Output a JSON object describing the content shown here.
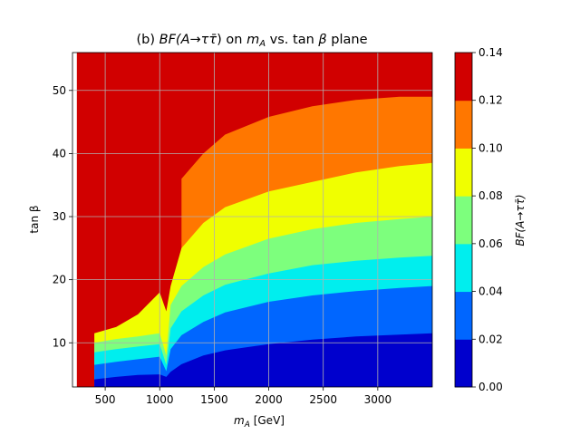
{
  "chart_data": {
    "type": "contourf",
    "title": "(b) BF(A→ττ̄) on m_A vs. tanβ plane",
    "title_parts": {
      "prefix": "(b) ",
      "bf": "BF",
      "paren_open": "(A",
      "arrow": "→",
      "tau": "τ",
      "taubar": "τ̄",
      "paren_close": ")",
      "on": " on ",
      "m": "m",
      "sub_A": "A",
      "vs": " vs. tan ",
      "beta": "β",
      "plane": " plane"
    },
    "xlabel": "m_A [GeV]",
    "xlabel_parts": {
      "m": "m",
      "sub_A": "A",
      "unit": " [GeV]"
    },
    "ylabel": "tan β",
    "xlim": [
      200,
      3500
    ],
    "ylim": [
      3,
      56
    ],
    "xticks": [
      500,
      1000,
      1500,
      2000,
      2500,
      3000
    ],
    "yticks": [
      10,
      20,
      30,
      40,
      50
    ],
    "grid": true,
    "levels": [
      0.0,
      0.02,
      0.04,
      0.06,
      0.08,
      0.1,
      0.12,
      0.14
    ],
    "level_colors": [
      "#0000cd",
      "#0066ff",
      "#00eeee",
      "#7dff7d",
      "#f0ff00",
      "#ff7700",
      "#d10000"
    ],
    "boundaries": {
      "x": [
        240,
        400,
        600,
        800,
        1000,
        1060,
        1100,
        1200,
        1400,
        1600,
        2000,
        2400,
        2800,
        3200,
        3500
      ],
      "bf_0_02": [
        null,
        4.2,
        4.6,
        4.9,
        5.0,
        4.6,
        5.4,
        6.6,
        8.0,
        8.8,
        9.8,
        10.5,
        11.0,
        11.3,
        11.5
      ],
      "bf_0_04": [
        null,
        6.5,
        7.0,
        7.4,
        7.8,
        5.5,
        9.0,
        11.2,
        13.3,
        14.8,
        16.5,
        17.5,
        18.2,
        18.7,
        19.0
      ],
      "bf_0_06": [
        null,
        8.5,
        9.0,
        9.4,
        9.8,
        6.5,
        12.3,
        15.0,
        17.5,
        19.2,
        21.0,
        22.3,
        23.0,
        23.5,
        23.8
      ],
      "bf_0_08": [
        null,
        10.0,
        10.6,
        11.0,
        11.5,
        8.0,
        16.0,
        19.0,
        22.0,
        24.0,
        26.5,
        28.0,
        29.0,
        29.6,
        30.0
      ],
      "bf_0_10": [
        null,
        11.5,
        12.5,
        14.5,
        18.0,
        15.0,
        19.0,
        25.0,
        29.0,
        31.5,
        34.0,
        35.5,
        37.0,
        38.0,
        38.5
      ],
      "bf_0_12": [
        null,
        null,
        null,
        null,
        null,
        null,
        null,
        36.0,
        40.0,
        43.0,
        45.8,
        47.5,
        48.5,
        49.0,
        49.0
      ]
    },
    "colorbar": {
      "label": "BF(A→ττ̄)",
      "ticks": [
        "0.00",
        "0.02",
        "0.04",
        "0.06",
        "0.08",
        "0.10",
        "0.12",
        "0.14"
      ]
    }
  }
}
